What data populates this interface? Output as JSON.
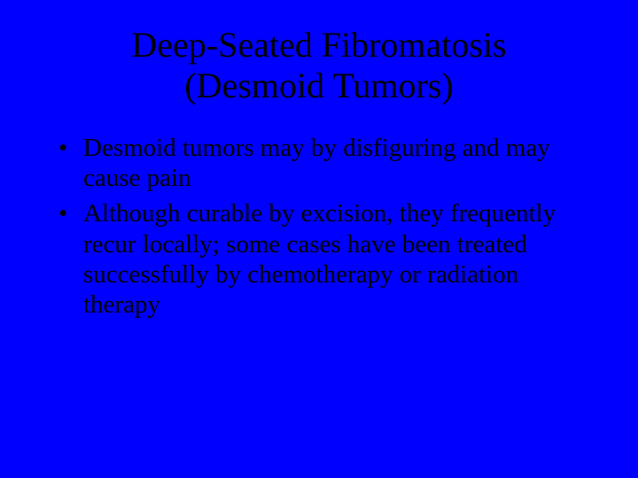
{
  "slide": {
    "background_color": "#0000ff",
    "text_color": "#000000",
    "font_family": "Times New Roman",
    "title_fontsize": 40,
    "body_fontsize": 29,
    "title_line1": "Deep-Seated Fibromatosis",
    "title_line2": "(Desmoid Tumors)",
    "bullets": [
      "Desmoid tumors may by disfiguring and may cause pain",
      "Although curable by excision, they frequently recur locally; some cases have been treated successfully by chemotherapy or radiation therapy"
    ]
  }
}
